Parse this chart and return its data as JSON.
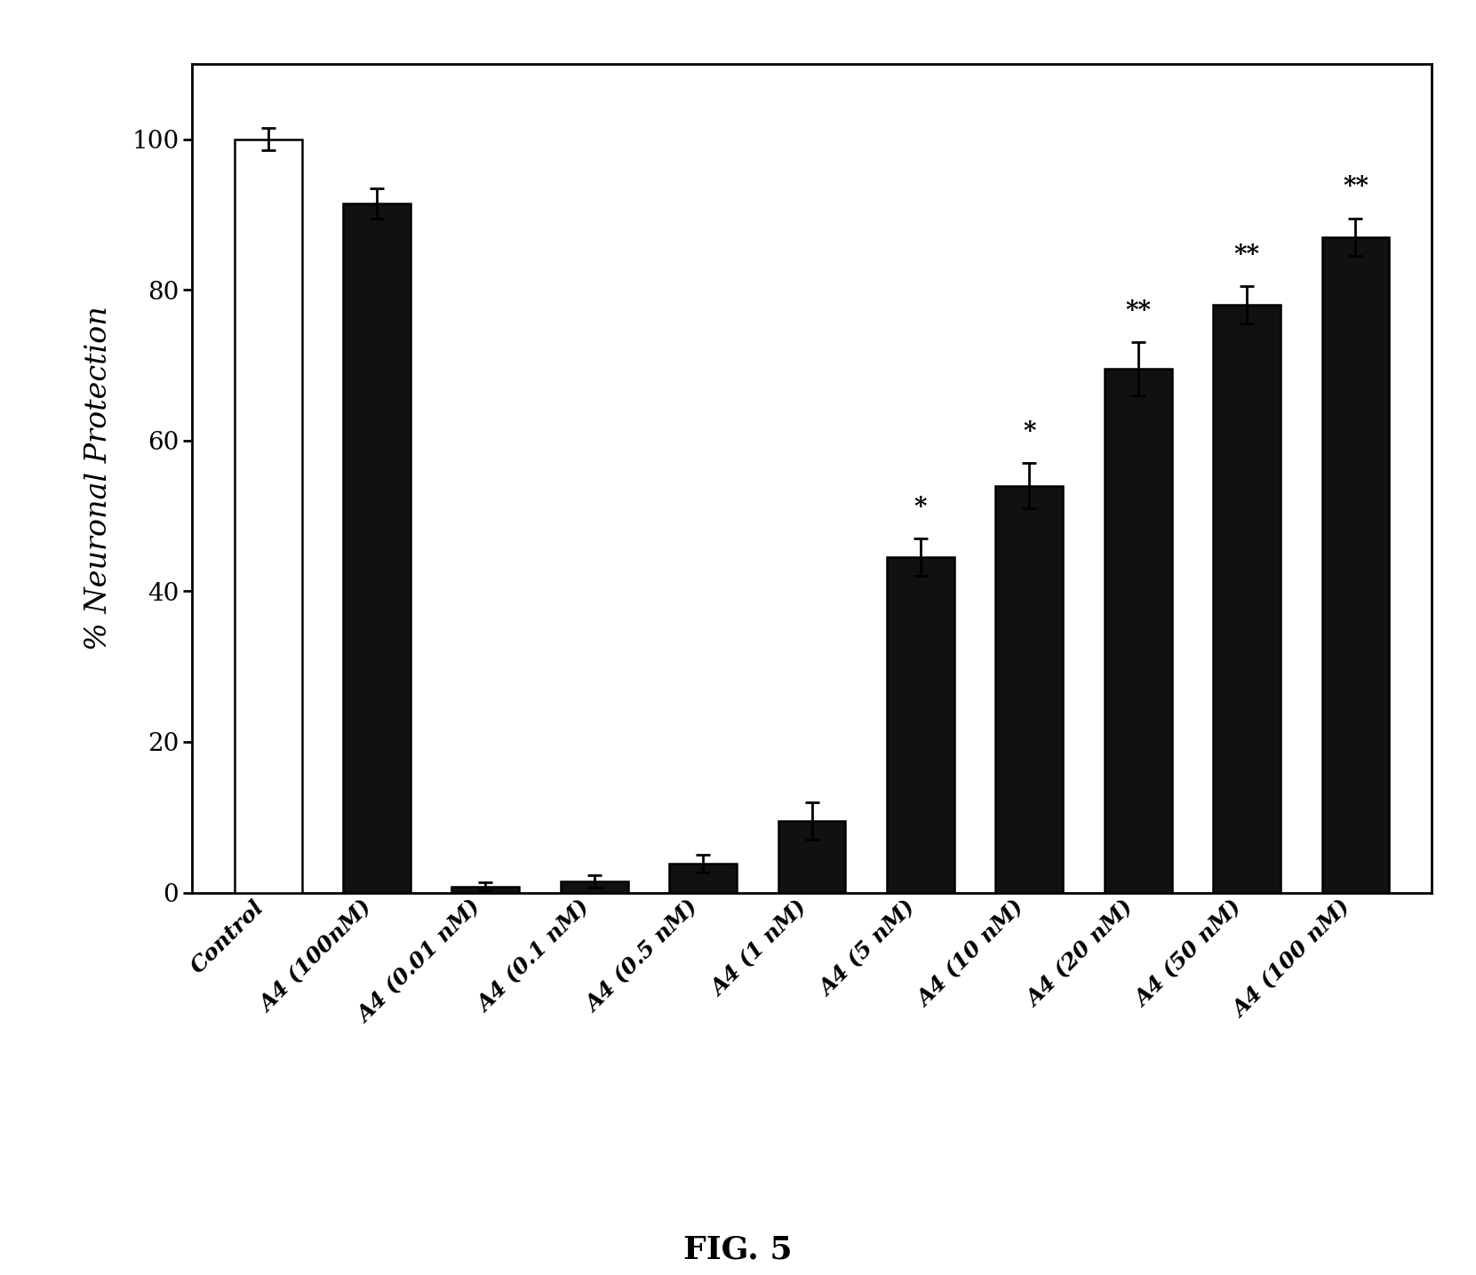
{
  "categories": [
    "Control",
    "A4 (100nM)",
    "A4 (0.01 nM)",
    "A4 (0.1 nM)",
    "A4 (0.5 nM)",
    "A4 (1 nM)",
    "A4 (5 nM)",
    "A4 (10 nM)",
    "A4 (20 nM)",
    "A4 (50 nM)",
    "A4 (100 nM)"
  ],
  "values": [
    100.0,
    91.5,
    0.8,
    1.5,
    3.8,
    9.5,
    44.5,
    54.0,
    69.5,
    78.0,
    87.0
  ],
  "errors": [
    1.5,
    2.0,
    0.5,
    0.8,
    1.2,
    2.5,
    2.5,
    3.0,
    3.5,
    2.5,
    2.5
  ],
  "bar_colors": [
    "#ffffff",
    "#111111",
    "#111111",
    "#111111",
    "#111111",
    "#111111",
    "#111111",
    "#111111",
    "#111111",
    "#111111",
    "#111111"
  ],
  "bar_edge_colors": [
    "#000000",
    "#000000",
    "#000000",
    "#000000",
    "#000000",
    "#000000",
    "#000000",
    "#000000",
    "#000000",
    "#000000",
    "#000000"
  ],
  "significance": [
    "",
    "",
    "",
    "",
    "",
    "",
    "*",
    "*",
    "**",
    "**",
    "**"
  ],
  "ylabel": "% Neuronal Protection",
  "ylim": [
    0,
    110
  ],
  "yticks": [
    0,
    20,
    40,
    60,
    80,
    100
  ],
  "figure_label": "FIG. 5",
  "background_color": "#ffffff",
  "plot_bg_color": "#ffffff",
  "figure_width": 16.61,
  "figure_height": 14.35
}
